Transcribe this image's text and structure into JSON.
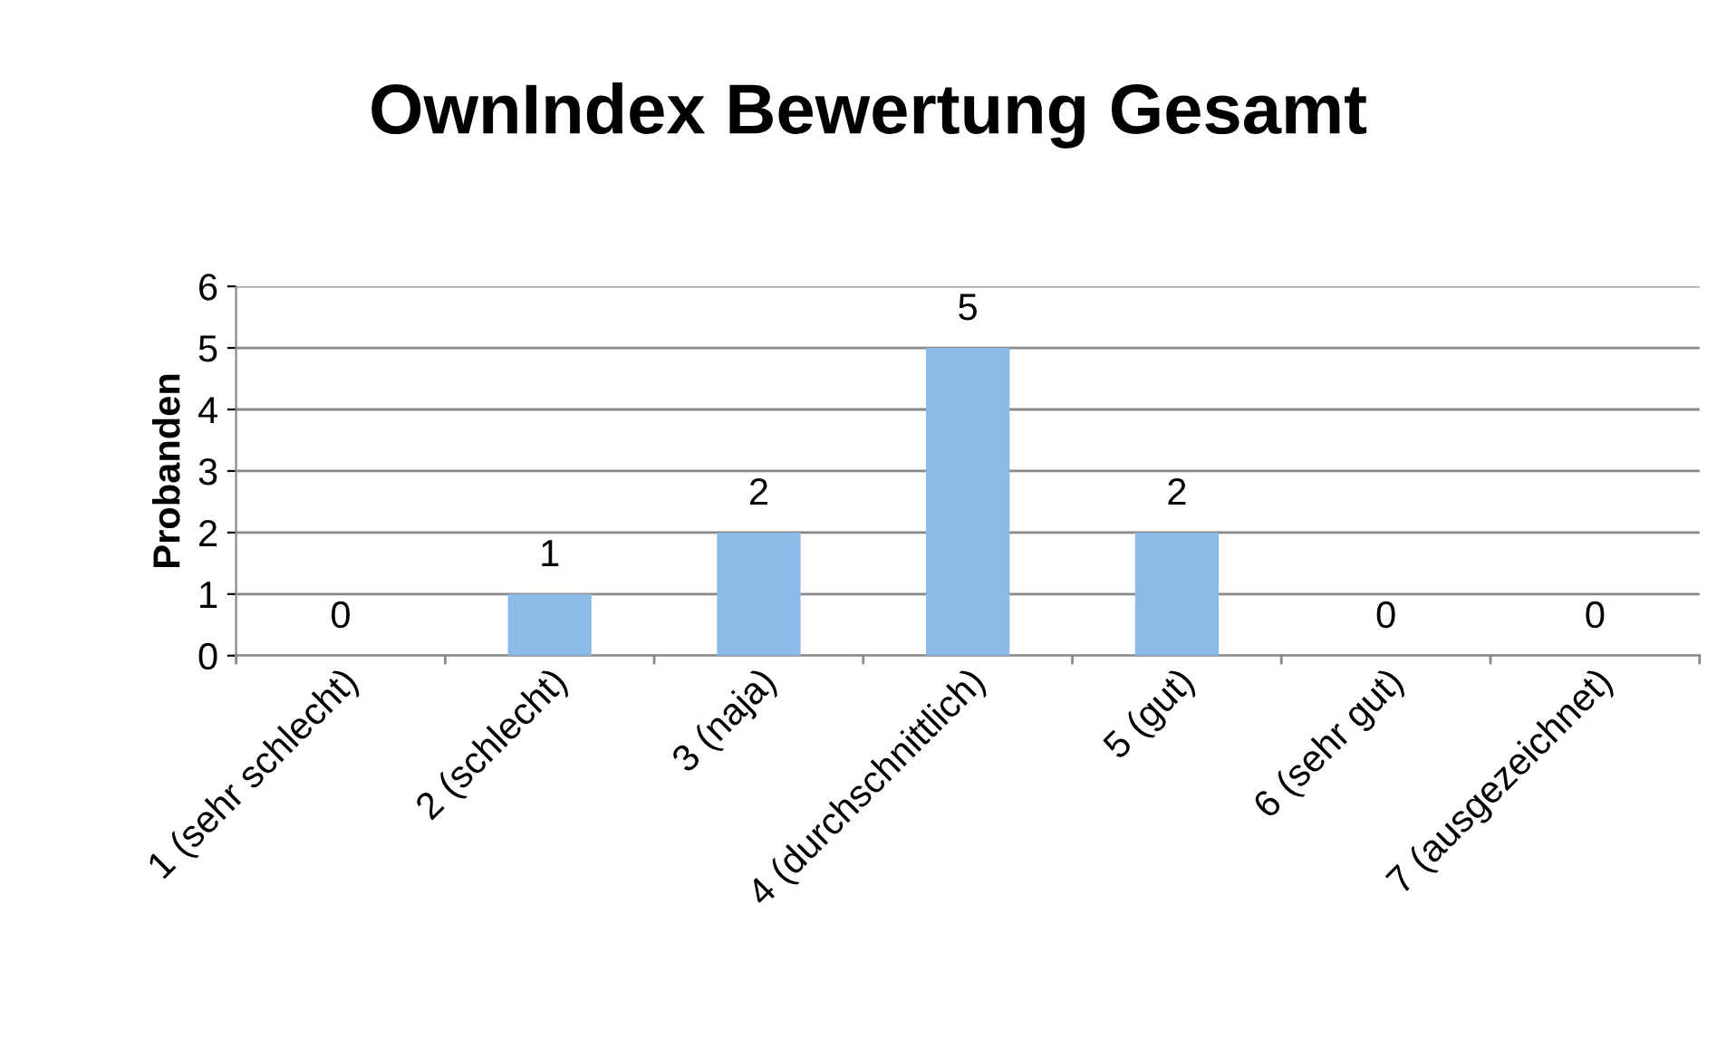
{
  "chart_data": {
    "type": "bar",
    "title": "OwnIndex Bewertung Gesamt",
    "ylabel": "Probanden",
    "categories": [
      "1 (sehr schlecht)",
      "2 (schlecht)",
      "3 (naja)",
      "4 (durchschnittlich)",
      "5 (gut)",
      "6 (sehr gut)",
      "7 (ausgezeichnet)"
    ],
    "values": [
      0,
      1,
      2,
      5,
      2,
      0,
      0
    ],
    "color": "#8dbbe9",
    "ylim": [
      0,
      6
    ],
    "yticks": [
      0,
      1,
      2,
      3,
      4,
      5,
      6
    ],
    "grid": "y",
    "data_labels": true,
    "legend": false
  }
}
